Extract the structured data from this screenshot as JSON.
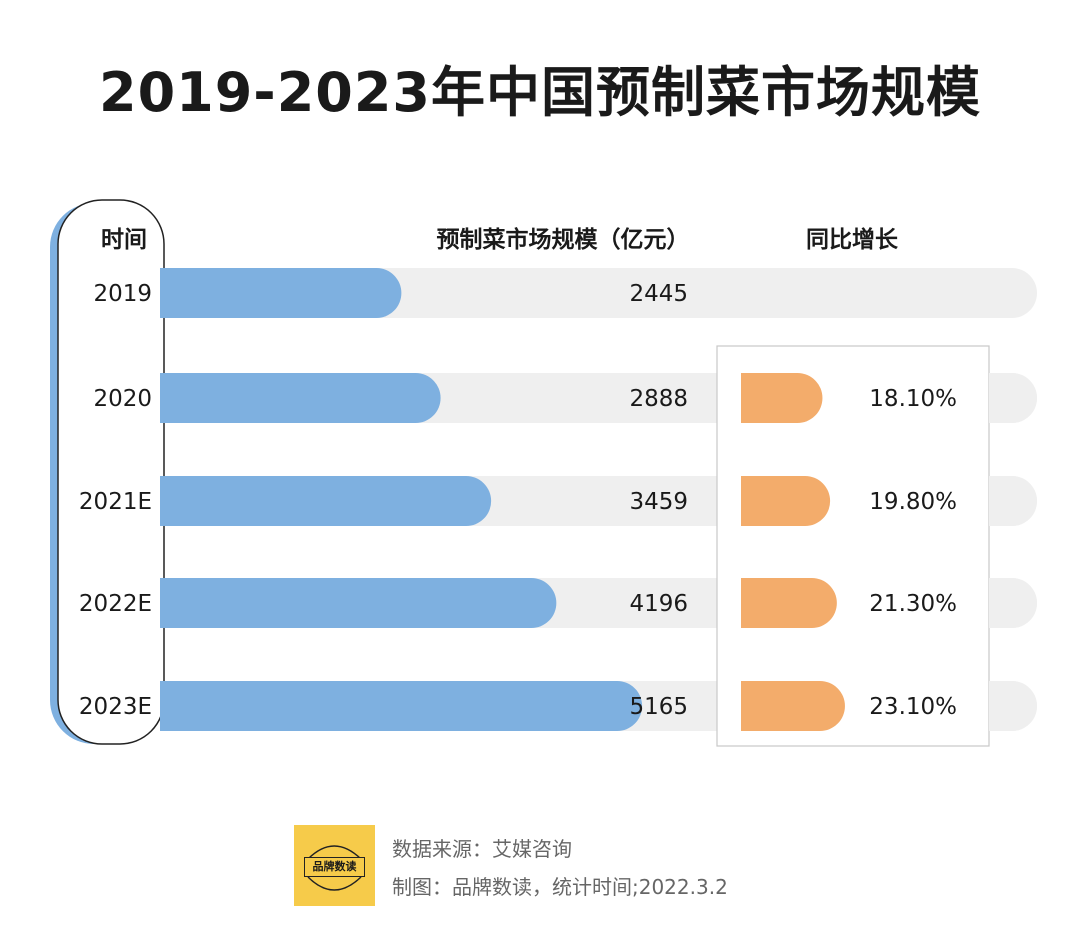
{
  "title": "2019-2023年中国预制菜市场规模",
  "headers": {
    "time": "时间",
    "size": "预制菜市场规模（亿元）",
    "growth": "同比增长"
  },
  "colors": {
    "blue": "#7eb0e0",
    "orange": "#f3ac6b",
    "track": "#efefef",
    "ticket_border": "#c8c8c8"
  },
  "chart_data": {
    "type": "bar",
    "title": "2019-2023年中国预制菜市场规模",
    "categories": [
      "2019",
      "2020",
      "2021E",
      "2022E",
      "2023E"
    ],
    "series": [
      {
        "name": "预制菜市场规模（亿元）",
        "values": [
          2445,
          2888,
          3459,
          4196,
          5165
        ]
      },
      {
        "name": "同比增长",
        "values": [
          null,
          18.1,
          19.8,
          21.3,
          23.1
        ]
      }
    ],
    "value_labels": [
      "2445",
      "2888",
      "3459",
      "4196",
      "5165"
    ],
    "growth_labels": [
      "",
      "18.10%",
      "19.80%",
      "21.30%",
      "23.10%"
    ],
    "xlabel": "时间",
    "ylabel": "预制菜市场规模（亿元）"
  },
  "footer": {
    "logo_text": "品牌数读",
    "source": "数据来源：艾媒咨询",
    "credit": "制图：品牌数读，统计时间;2022.3.2"
  }
}
